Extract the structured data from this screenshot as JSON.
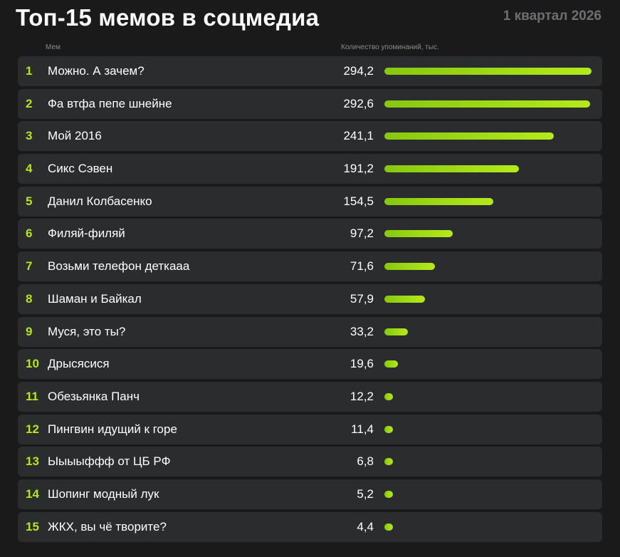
{
  "title": "Топ-15 мемов в соцмедиа",
  "period": "1 квартал 2026",
  "columns": {
    "meme": "Мем",
    "count": "Количество упоминаний, тыс."
  },
  "colors": {
    "background": "#1a1a1b",
    "row": "#2b2c2e",
    "accent": "#b6e619"
  },
  "chart_data": {
    "type": "bar",
    "orientation": "horizontal",
    "categories": [
      "Можно. А зачем?",
      "Фа втфа пепе шнейне",
      "Мой 2016",
      "Сикс Сэвен",
      "Данил Колбасенко",
      "Филяй-филяй",
      "Возьми телефон деткааа",
      "Шаман и Байкал",
      "Муся, это ты?",
      "Дрысясися",
      "Обезьянка Панч",
      "Пингвин идущий к горе",
      "Ыыыыффф от ЦБ РФ",
      "Шопинг модный лук",
      "ЖКХ, вы чё творите?"
    ],
    "ranks": [
      "1",
      "2",
      "3",
      "4",
      "5",
      "6",
      "7",
      "8",
      "9",
      "10",
      "11",
      "12",
      "13",
      "14",
      "15"
    ],
    "values": [
      294.2,
      292.6,
      241.1,
      191.2,
      154.5,
      97.2,
      71.6,
      57.9,
      33.2,
      19.6,
      12.2,
      11.4,
      6.8,
      5.2,
      4.4
    ],
    "value_labels": [
      "294,2",
      "292,6",
      "241,1",
      "191,2",
      "154,5",
      "97,2",
      "71,6",
      "57,9",
      "33,2",
      "19,6",
      "12,2",
      "11,4",
      "6,8",
      "5,2",
      "4,4"
    ],
    "xlim": [
      0,
      294.2
    ],
    "xlabel": "Количество упоминаний, тыс.",
    "ylabel": "Мем",
    "grid": false,
    "legend": "none"
  }
}
